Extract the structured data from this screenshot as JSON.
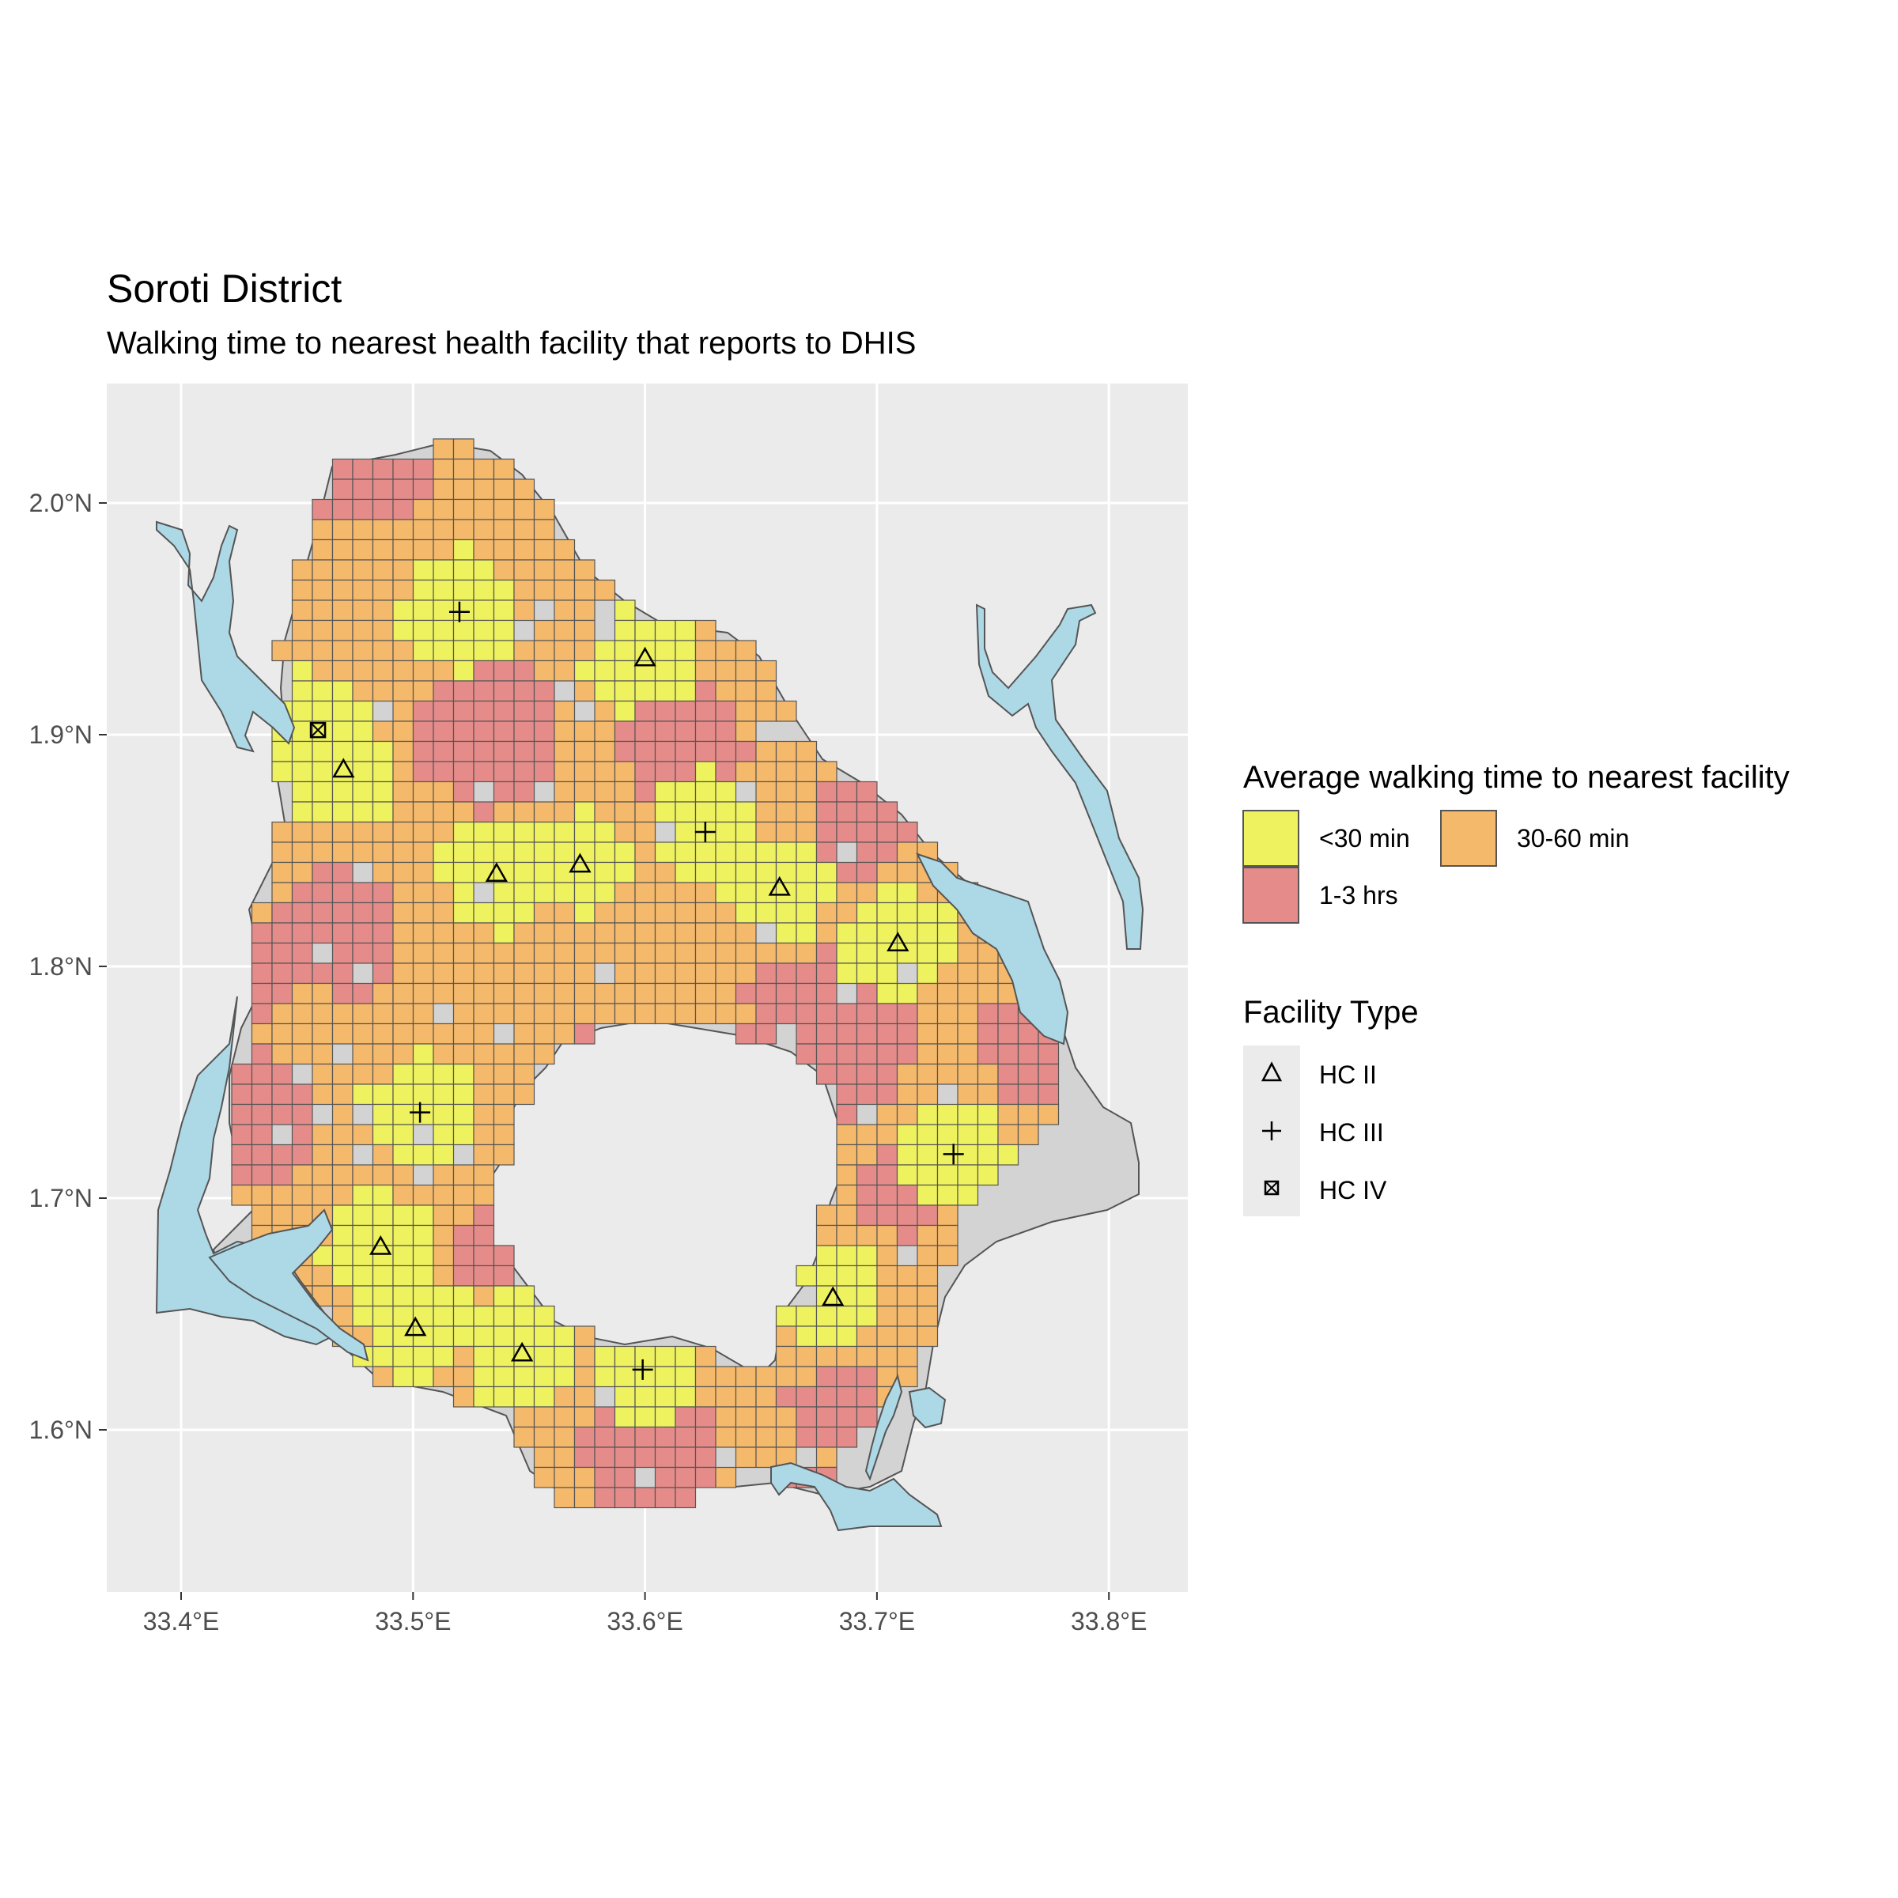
{
  "title": "Soroti District",
  "subtitle": "Walking time to nearest health facility that reports to DHIS",
  "chart_data": {
    "type": "heatmap",
    "map_type": "choropleth grid over district boundary",
    "x_axis": {
      "ticks": [
        33.4,
        33.5,
        33.6,
        33.7,
        33.8
      ],
      "tick_labels": [
        "33.4°E",
        "33.5°E",
        "33.6°E",
        "33.7°E",
        "33.8°E"
      ],
      "range": [
        33.37,
        33.84
      ]
    },
    "y_axis": {
      "ticks": [
        1.6,
        1.7,
        1.8,
        1.9,
        2.0
      ],
      "tick_labels": [
        "1.6°N",
        "1.7°N",
        "1.8°N",
        "1.9°N",
        "2.0°N"
      ],
      "range": [
        1.53,
        2.05
      ]
    },
    "grid": true,
    "colors": {
      "panel": "#ebebeb",
      "gridline": "#ffffff",
      "land": "#d3d3d3",
      "water": "#add8e6",
      "under30": "#eef25e",
      "min30_60": "#f5b96b",
      "hrs1_3": "#e58c8a",
      "cell_border": "#555555"
    },
    "legend_fill": {
      "title": "Average walking time to nearest facility",
      "items": [
        {
          "label": "<30 min",
          "color": "#eef25e"
        },
        {
          "label": "30-60 min",
          "color": "#f5b96b"
        },
        {
          "label": "1-3 hrs",
          "color": "#e58c8a"
        }
      ]
    },
    "legend_shape": {
      "title": "Facility Type",
      "items": [
        {
          "label": "HC II",
          "symbol": "triangle"
        },
        {
          "label": "HC III",
          "symbol": "plus"
        },
        {
          "label": "HC IV",
          "symbol": "square-cross"
        }
      ]
    },
    "facilities": [
      {
        "type": "HC II",
        "lon": 33.6,
        "lat": 1.933
      },
      {
        "type": "HC II",
        "lon": 33.47,
        "lat": 1.885
      },
      {
        "type": "HC II",
        "lon": 33.536,
        "lat": 1.84
      },
      {
        "type": "HC II",
        "lon": 33.572,
        "lat": 1.844
      },
      {
        "type": "HC II",
        "lon": 33.658,
        "lat": 1.834
      },
      {
        "type": "HC II",
        "lon": 33.709,
        "lat": 1.81
      },
      {
        "type": "HC II",
        "lon": 33.486,
        "lat": 1.679
      },
      {
        "type": "HC II",
        "lon": 33.501,
        "lat": 1.644
      },
      {
        "type": "HC II",
        "lon": 33.547,
        "lat": 1.633
      },
      {
        "type": "HC II",
        "lon": 33.681,
        "lat": 1.657
      },
      {
        "type": "HC III",
        "lon": 33.52,
        "lat": 1.953
      },
      {
        "type": "HC III",
        "lon": 33.626,
        "lat": 1.858
      },
      {
        "type": "HC III",
        "lon": 33.503,
        "lat": 1.737
      },
      {
        "type": "HC III",
        "lon": 33.733,
        "lat": 1.719
      },
      {
        "type": "HC III",
        "lon": 33.599,
        "lat": 1.626
      },
      {
        "type": "HC IV",
        "lon": 33.459,
        "lat": 1.902
      }
    ]
  }
}
